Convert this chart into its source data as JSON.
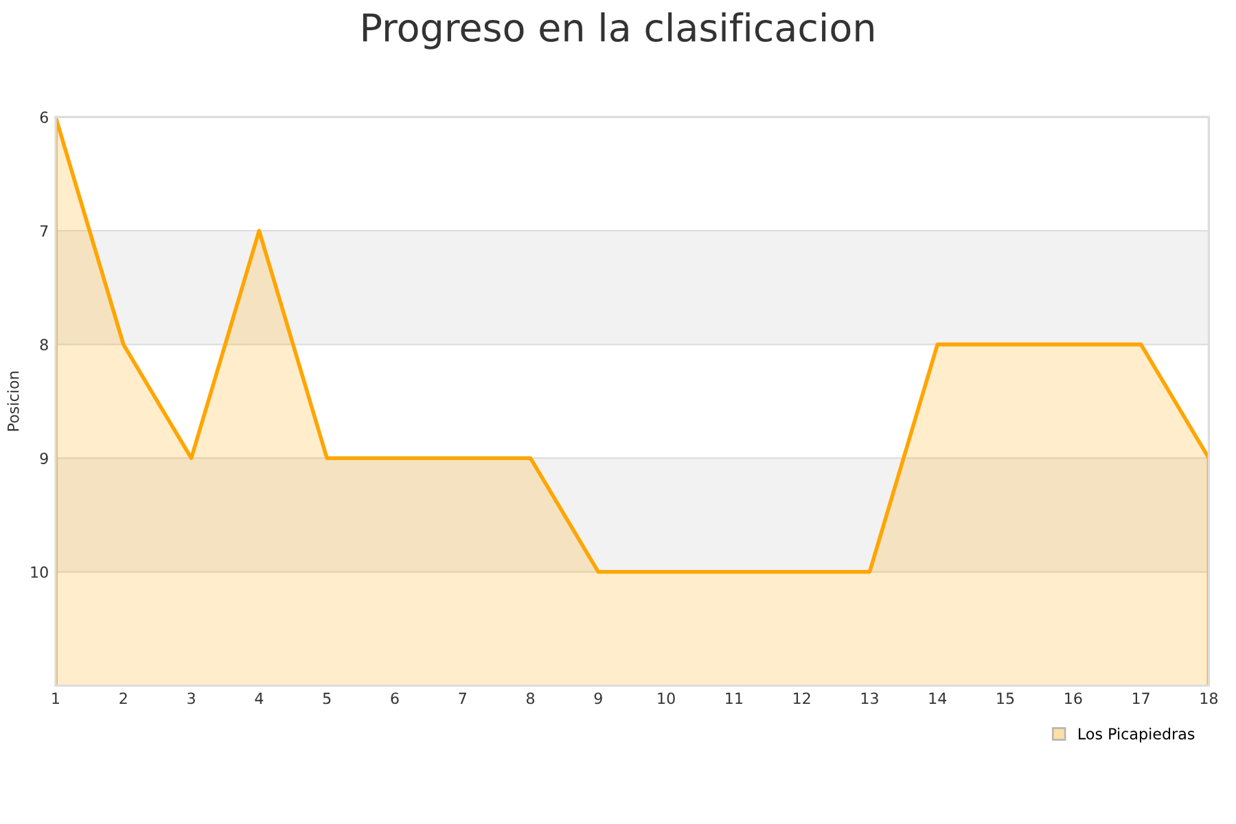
{
  "chart_data": {
    "type": "area",
    "title": "Progreso en la clasificacion",
    "ylabel": "Posicion",
    "x": [
      1,
      2,
      3,
      4,
      5,
      6,
      7,
      8,
      9,
      10,
      11,
      12,
      13,
      14,
      15,
      16,
      17,
      18
    ],
    "series": [
      {
        "name": "Los Picapiedras",
        "color": "#ffa500",
        "values": [
          6,
          8,
          9,
          7,
          9,
          9,
          9,
          9,
          10,
          10,
          10,
          10,
          10,
          8,
          8,
          8,
          8,
          9
        ]
      }
    ],
    "xlim": [
      1,
      18
    ],
    "xticks": [
      1,
      2,
      3,
      4,
      5,
      6,
      7,
      8,
      9,
      10,
      11,
      12,
      13,
      14,
      15,
      16,
      17,
      18
    ],
    "ylim": [
      11,
      6
    ],
    "yticks": [
      6,
      7,
      8,
      9,
      10
    ],
    "bands": [
      {
        "axis": "y",
        "from": 7,
        "to": 8,
        "color": "#f2f2f2"
      },
      {
        "axis": "y",
        "from": 9,
        "to": 10,
        "color": "#f2f2f2"
      }
    ],
    "grid": "y",
    "legend": "bottom right",
    "line_style": "solid"
  }
}
